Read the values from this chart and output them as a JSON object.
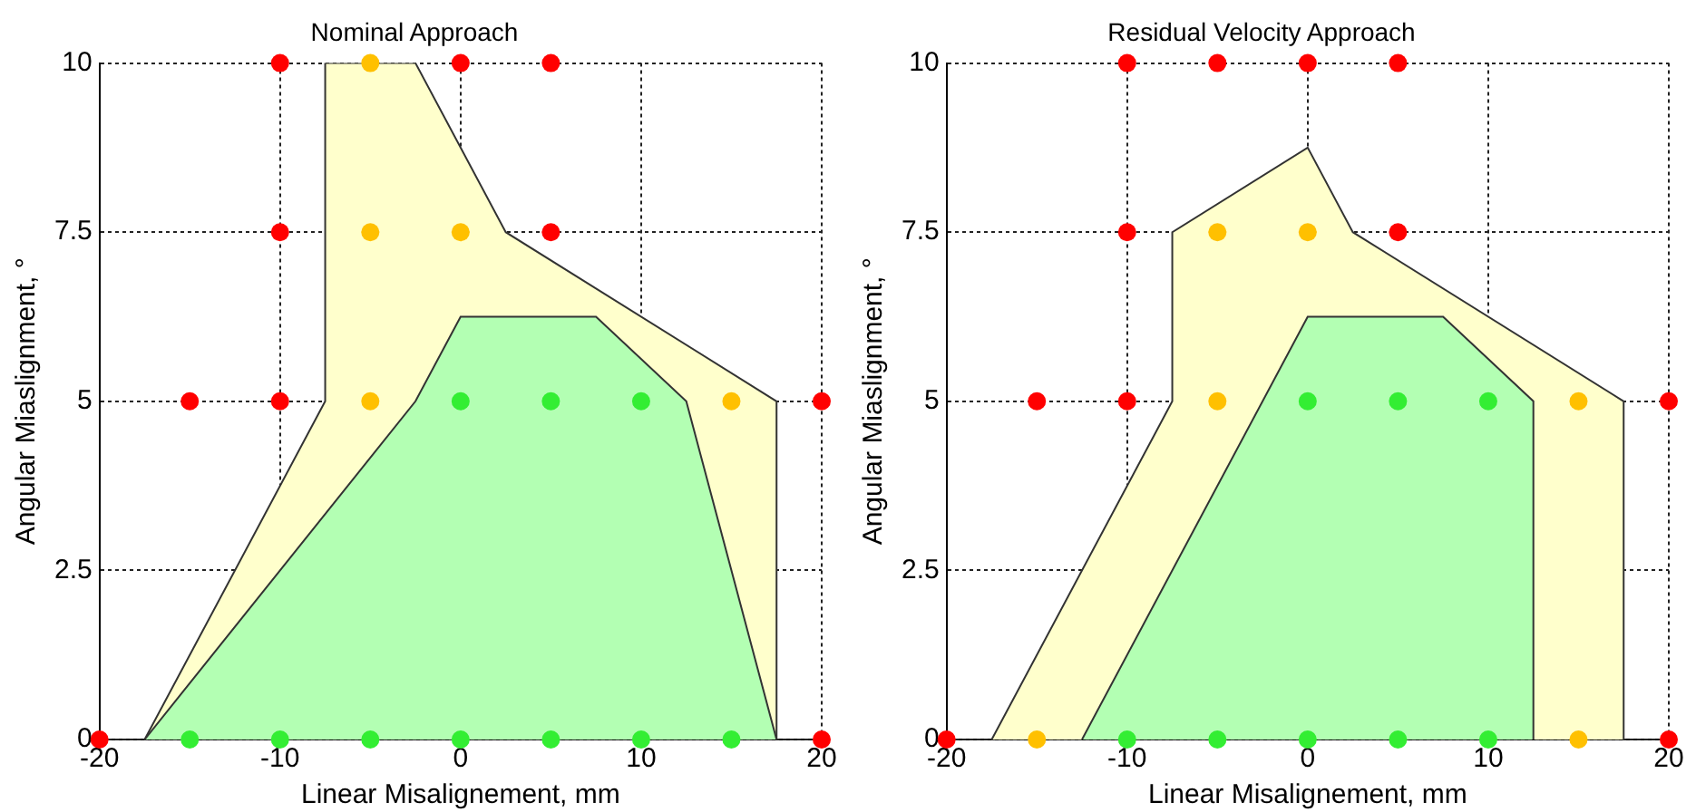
{
  "chart_data": [
    {
      "type": "scatter",
      "title": "Nominal Approach",
      "xlabel": "Linear Misalignement, mm",
      "ylabel": "Angular Miaslignment, °",
      "xlim": [
        -20,
        20
      ],
      "xticks": [
        -20,
        -10,
        0,
        10,
        20
      ],
      "ylim": [
        0,
        10
      ],
      "yticks": [
        0,
        2.5,
        5,
        7.5,
        10
      ],
      "grid": true,
      "legend": false,
      "series": [
        {
          "type": "area",
          "marker": "none",
          "color": "#ffffcc",
          "x": [
            -17.5,
            -7.5,
            -7.5,
            -2.5,
            2.5,
            17.5,
            17.5
          ],
          "values": [
            0,
            5,
            10,
            10,
            7.5,
            5,
            0
          ]
        },
        {
          "type": "area",
          "marker": "none",
          "color": "#b3ffb3",
          "x": [
            -17.5,
            -2.5,
            0,
            7.5,
            12.5,
            17.5
          ],
          "values": [
            0,
            5,
            6.25,
            6.25,
            5,
            0
          ]
        },
        {
          "marker": "circle",
          "color": "#ff0000",
          "x": [
            -10,
            0,
            5,
            -10,
            5,
            -15,
            -10,
            20,
            -20,
            20
          ],
          "values": [
            10,
            10,
            10,
            7.5,
            7.5,
            5,
            5,
            5,
            0,
            0
          ]
        },
        {
          "marker": "circle",
          "color": "#ffc000",
          "x": [
            -5,
            -5,
            0,
            -5,
            15
          ],
          "values": [
            10,
            7.5,
            7.5,
            5,
            5
          ]
        },
        {
          "marker": "circle",
          "color": "#33ee33",
          "x": [
            0,
            5,
            10,
            -15,
            -10,
            -5,
            0,
            5,
            10,
            15
          ],
          "values": [
            5,
            5,
            5,
            0,
            0,
            0,
            0,
            0,
            0,
            0
          ]
        }
      ]
    },
    {
      "type": "scatter",
      "title": "Residual Velocity Approach",
      "xlabel": "Linear Misalignement, mm",
      "ylabel": "Angular Miaslignment, °",
      "xlim": [
        -20,
        20
      ],
      "xticks": [
        -20,
        -10,
        0,
        10,
        20
      ],
      "ylim": [
        0,
        10
      ],
      "yticks": [
        0,
        2.5,
        5,
        7.5,
        10
      ],
      "grid": true,
      "legend": false,
      "series": [
        {
          "type": "area",
          "marker": "none",
          "color": "#ffffcc",
          "x": [
            -17.5,
            -7.5,
            -7.5,
            0,
            2.5,
            17.5,
            17.5
          ],
          "values": [
            0,
            5,
            7.5,
            8.75,
            7.5,
            5,
            0
          ]
        },
        {
          "type": "area",
          "marker": "none",
          "color": "#b3ffb3",
          "x": [
            -12.5,
            0,
            7.5,
            12.5,
            12.5
          ],
          "values": [
            0,
            6.25,
            6.25,
            5,
            0
          ]
        },
        {
          "marker": "circle",
          "color": "#ff0000",
          "x": [
            -10,
            -5,
            0,
            5,
            -10,
            5,
            -15,
            -10,
            20,
            -20,
            20
          ],
          "values": [
            10,
            10,
            10,
            10,
            7.5,
            7.5,
            5,
            5,
            5,
            0,
            0
          ]
        },
        {
          "marker": "circle",
          "color": "#ffc000",
          "x": [
            -5,
            0,
            -5,
            15,
            -15,
            15
          ],
          "values": [
            7.5,
            7.5,
            5,
            5,
            0,
            0
          ]
        },
        {
          "marker": "circle",
          "color": "#33ee33",
          "x": [
            0,
            5,
            10,
            -10,
            -5,
            0,
            5,
            10
          ],
          "values": [
            5,
            5,
            5,
            0,
            0,
            0,
            0,
            0
          ]
        }
      ]
    }
  ]
}
